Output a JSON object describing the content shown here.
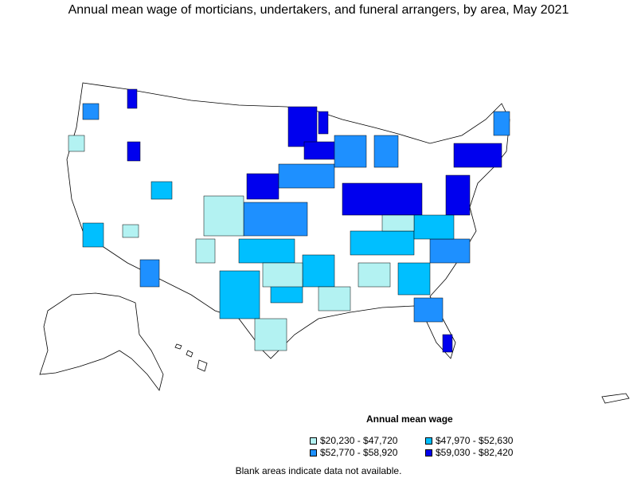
{
  "title": "Annual mean wage of morticians, undertakers, and funeral arrangers, by area, May 2021",
  "legend": {
    "title": "Annual mean wage",
    "items": [
      {
        "label": "$20,230 - $47,720",
        "color": "#b3f2f2"
      },
      {
        "label": "$47,970 - $52,630",
        "color": "#00bfff"
      },
      {
        "label": "$52,770 - $58,920",
        "color": "#1e90ff"
      },
      {
        "label": "$59,030 - $82,420",
        "color": "#0000ee"
      }
    ]
  },
  "footnote": "Blank areas indicate data not available.",
  "colors": {
    "stroke": "#000000",
    "blank": "#ffffff"
  }
}
